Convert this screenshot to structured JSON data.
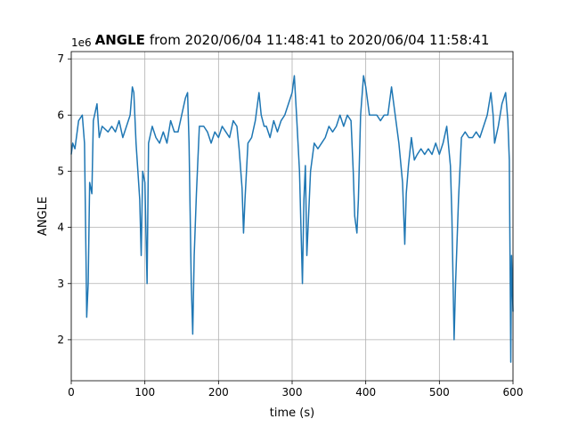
{
  "chart_data": {
    "type": "line",
    "title_prefix": "ANGLE",
    "title": "from 2020/06/04 11:48:41 to 2020/06/04 11:58:41",
    "offset_text": "1e6",
    "xlabel": "time (s)",
    "ylabel": "ANGLE",
    "color": "#1f77b4",
    "grid": true,
    "xlim": [
      0,
      600
    ],
    "xticks": [
      0,
      100,
      200,
      300,
      400,
      500,
      600
    ],
    "ylim": [
      1.27,
      7.13
    ],
    "yticks": [
      2,
      3,
      4,
      5,
      6,
      7
    ],
    "x": [
      0,
      2,
      5,
      10,
      15,
      18,
      20,
      21,
      23,
      25,
      28,
      30,
      35,
      38,
      42,
      50,
      55,
      60,
      65,
      70,
      75,
      80,
      83,
      85,
      88,
      93,
      95,
      97,
      100,
      103,
      105,
      110,
      115,
      120,
      125,
      130,
      135,
      140,
      145,
      150,
      155,
      158,
      160,
      163,
      165,
      167,
      170,
      174,
      180,
      185,
      190,
      195,
      200,
      205,
      210,
      215,
      220,
      225,
      228,
      232,
      234,
      236,
      240,
      245,
      250,
      255,
      258,
      262,
      265,
      270,
      275,
      280,
      285,
      290,
      295,
      300,
      303,
      306,
      310,
      312,
      314,
      316,
      318,
      320,
      325,
      330,
      335,
      340,
      345,
      350,
      355,
      360,
      365,
      370,
      375,
      380,
      383,
      385,
      388,
      390,
      393,
      397,
      400,
      405,
      410,
      415,
      420,
      425,
      430,
      435,
      440,
      445,
      450,
      453,
      455,
      458,
      462,
      466,
      470,
      475,
      480,
      485,
      490,
      495,
      500,
      505,
      510,
      515,
      517,
      520,
      522,
      526,
      530,
      535,
      540,
      545,
      550,
      555,
      560,
      565,
      570,
      573,
      575,
      580,
      585,
      590,
      593,
      595,
      597,
      598,
      600
    ],
    "values": [
      5.3,
      5.5,
      5.4,
      5.9,
      6.0,
      5.5,
      3.5,
      2.4,
      3.0,
      4.8,
      4.6,
      5.9,
      6.2,
      5.6,
      5.8,
      5.7,
      5.8,
      5.7,
      5.9,
      5.6,
      5.8,
      6.0,
      6.5,
      6.4,
      5.5,
      4.5,
      3.5,
      5.0,
      4.8,
      3.0,
      5.5,
      5.8,
      5.6,
      5.5,
      5.7,
      5.5,
      5.9,
      5.7,
      5.7,
      6.0,
      6.3,
      6.4,
      5.5,
      3.0,
      2.1,
      3.5,
      4.6,
      5.8,
      5.8,
      5.7,
      5.5,
      5.7,
      5.6,
      5.8,
      5.7,
      5.6,
      5.9,
      5.8,
      5.4,
      4.7,
      3.9,
      4.5,
      5.5,
      5.6,
      5.9,
      6.4,
      6.0,
      5.8,
      5.8,
      5.6,
      5.9,
      5.7,
      5.9,
      6.0,
      6.2,
      6.4,
      6.7,
      6.0,
      5.0,
      4.0,
      3.0,
      4.5,
      5.1,
      3.5,
      5.0,
      5.5,
      5.4,
      5.5,
      5.6,
      5.8,
      5.7,
      5.8,
      6.0,
      5.8,
      6.0,
      5.9,
      5.0,
      4.2,
      3.9,
      4.5,
      6.0,
      6.7,
      6.5,
      6.0,
      6.0,
      6.0,
      5.9,
      6.0,
      6.0,
      6.5,
      6.0,
      5.5,
      4.8,
      3.7,
      4.6,
      5.1,
      5.6,
      5.2,
      5.3,
      5.4,
      5.3,
      5.4,
      5.3,
      5.5,
      5.3,
      5.5,
      5.8,
      5.1,
      4.2,
      2.0,
      3.0,
      4.5,
      5.6,
      5.7,
      5.6,
      5.6,
      5.7,
      5.6,
      5.8,
      6.0,
      6.4,
      6.0,
      5.5,
      5.8,
      6.2,
      6.4,
      5.9,
      5.2,
      1.6,
      3.5,
      2.5
    ]
  }
}
